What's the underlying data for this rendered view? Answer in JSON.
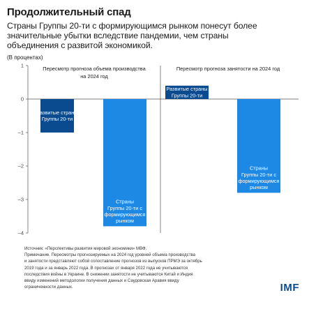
{
  "header": {
    "title": "Продолжительный спад",
    "subtitle_lines": [
      "Страны Группы 20-ти с формирующимся рынком понесут более",
      "значительные убытки вследствие пандемии, чем страны",
      "объединения с развитой экономикой."
    ],
    "units": "(В процентах)"
  },
  "chart_data": [
    {
      "type": "bar",
      "title_lines": [
        "Пересмотр прогноза объема производства",
        "на 2024 год"
      ],
      "categories": [
        "Развитые страны Группы 20-ти",
        "Страны Группы 20-ти с формирующимся рынком"
      ],
      "category_label_lines": [
        [
          "Развитые страны",
          "Группы 20-ти"
        ],
        [
          "Страны",
          "Группы 20-ти с",
          "формирующимся",
          "рынком"
        ]
      ],
      "values": [
        -1.0,
        -3.8
      ],
      "colors": [
        "#0a4a8f",
        "#1e88e5"
      ],
      "ylim": [
        -4,
        1
      ],
      "yticks": [
        1,
        0,
        -1,
        -2,
        -3,
        -4
      ],
      "grid": false,
      "xlabel": "",
      "ylabel": ""
    },
    {
      "type": "bar",
      "title_lines": [
        "Пересмотр прогноза занятости на 2024 год"
      ],
      "categories": [
        "Развитые страны Группы 20-ти",
        "Страны Группы 20-ти с формирующимся рынком"
      ],
      "category_label_lines": [
        [
          "Развитые страны",
          "Группы 20-ти"
        ],
        [
          "Страны",
          "Группы 20-ти с",
          "формирующимся",
          "рынком"
        ]
      ],
      "values": [
        0.4,
        -2.8
      ],
      "colors": [
        "#0a4a8f",
        "#1e88e5"
      ],
      "ylim": [
        -4,
        1
      ],
      "grid": false,
      "xlabel": "",
      "ylabel": ""
    }
  ],
  "notes": [
    "Источник: «Перспективы развития мировой экономики» МВФ.",
    "Примечание. Пересмотры прогнозируемых на 2024 год уровней объема производства",
    "и занятости представляют собой сопоставление прогнозов из выпусков ПРМЭ за октябрь",
    "2019 года и за январь 2022 года. В прогнозах от января 2022 года не учитываются",
    "последствия войны в Украине. В снижении занятости не учитываются Китай и Индия",
    "ввиду изменений методологии получения данных и Саудовская Аравия ввиду",
    "ограниченности данных."
  ],
  "logo": "IMF"
}
